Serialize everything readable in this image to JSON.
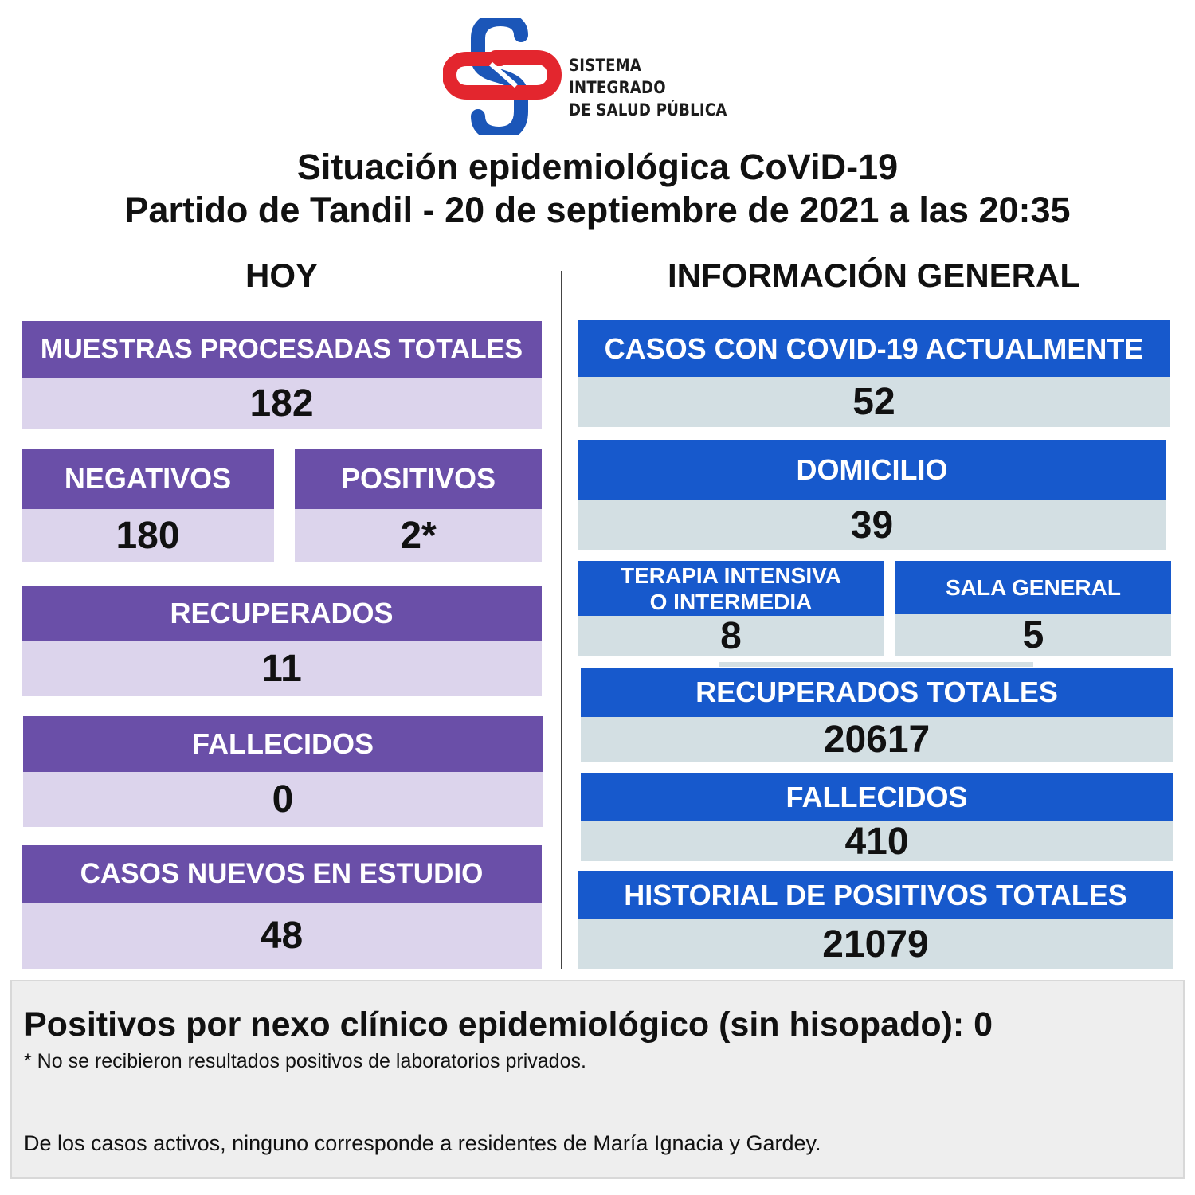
{
  "header": {
    "logo_line1": "SISTEMA INTEGRADO",
    "logo_line2": "DE SALUD PÚBLICA",
    "title_line1": "Situación epidemiológica CoViD-19",
    "title_line2": "Partido de Tandil - 20 de septiembre de 2021 a las 20:35"
  },
  "hoy": {
    "heading": "HOY",
    "muestras": {
      "label": "MUESTRAS PROCESADAS TOTALES",
      "value": "182"
    },
    "negativos": {
      "label": "NEGATIVOS",
      "value": "180"
    },
    "positivos": {
      "label": "POSITIVOS",
      "value": "2*"
    },
    "recuperados": {
      "label": "RECUPERADOS",
      "value": "11"
    },
    "fallecidos": {
      "label": "FALLECIDOS",
      "value": "0"
    },
    "nuevos": {
      "label": "CASOS NUEVOS EN ESTUDIO",
      "value": "48"
    }
  },
  "general": {
    "heading": "INFORMACIÓN GENERAL",
    "actuales": {
      "label": "CASOS CON COVID-19 ACTUALMENTE",
      "value": "52"
    },
    "domicilio": {
      "label": "DOMICILIO",
      "value": "39"
    },
    "terapia": {
      "label_line1": "TERAPIA INTENSIVA",
      "label_line2": "O INTERMEDIA",
      "value": "8"
    },
    "sala": {
      "label": "SALA GENERAL",
      "value": "5"
    },
    "recuperados": {
      "label": "RECUPERADOS TOTALES",
      "value": "20617"
    },
    "fallecidos": {
      "label": "FALLECIDOS",
      "value": "410"
    },
    "historial": {
      "label": "HISTORIAL DE POSITIVOS TOTALES",
      "value": "21079"
    }
  },
  "footer": {
    "nexo": "Positivos por nexo clínico epidemiológico (sin hisopado): 0",
    "note_privados": "* No se recibieron resultados positivos de laboratorios privados.",
    "note_residentes": "De los casos activos, ninguno corresponde a residentes de María Ignacia y Gardey."
  },
  "colors": {
    "purple_header": "#6a4fa8",
    "lavender_value": "#dcd4ec",
    "blue_header": "#1759cc",
    "grey_value": "#d3dfe3",
    "logo_red": "#e3262e",
    "logo_blue": "#1b56b8"
  },
  "icons": {
    "logo": "health-system-logo-icon"
  }
}
